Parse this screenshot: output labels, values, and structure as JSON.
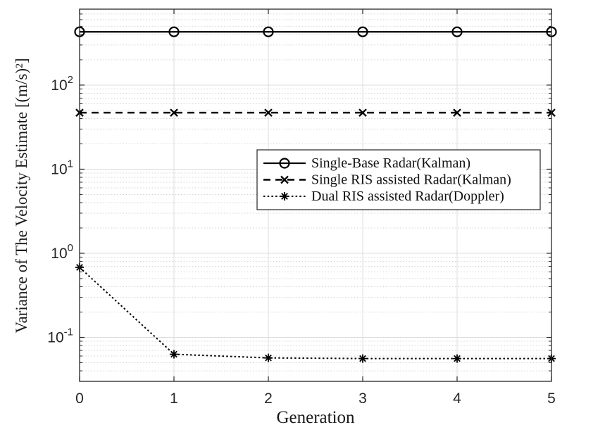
{
  "figure": {
    "background": "#ffffff"
  },
  "chart_data": {
    "type": "line",
    "title": "",
    "xlabel": "Generation",
    "ylabel": "Variance of The Velocity Estimate [(m/s)²]",
    "yscale": "log",
    "x": [
      0,
      1,
      2,
      3,
      4,
      5
    ],
    "xlim": [
      0,
      5
    ],
    "ylim": [
      0.03,
      800
    ],
    "xticks": [
      0,
      1,
      2,
      3,
      4,
      5
    ],
    "ytick_exponents": [
      2,
      1,
      0,
      -1
    ],
    "grid": true,
    "minor_grid": true,
    "legend_position": "inside-middle-right",
    "axes_color": "#262626",
    "grid_color": "#dcdcdc",
    "minor_grid_color": "#d2d2d2",
    "series": [
      {
        "name": "Single-Base Radar(Kalman)",
        "line": "solid",
        "marker": "circle",
        "color": "#000000",
        "values": [
          430,
          430,
          430,
          430,
          430,
          430
        ]
      },
      {
        "name": "Single RIS assisted Radar(Kalman)",
        "line": "dashed",
        "marker": "x",
        "color": "#000000",
        "values": [
          47,
          47,
          47,
          47,
          47,
          47
        ]
      },
      {
        "name": "Dual RIS assisted Radar(Doppler)",
        "line": "dotted",
        "marker": "asterisk",
        "color": "#000000",
        "values": [
          0.68,
          0.063,
          0.057,
          0.056,
          0.056,
          0.056
        ]
      }
    ]
  }
}
